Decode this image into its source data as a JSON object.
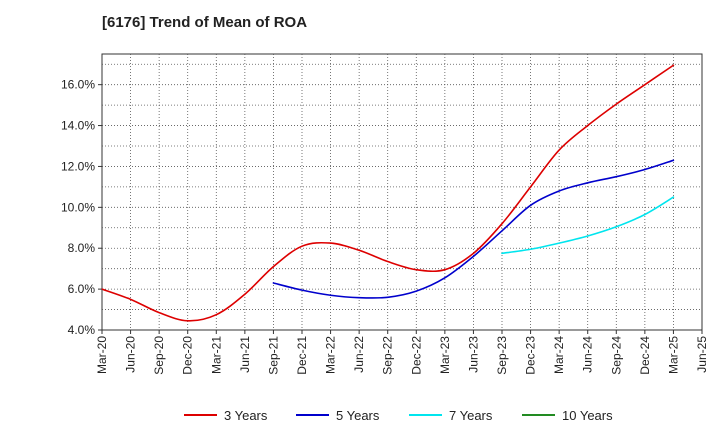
{
  "chart_data": {
    "type": "line",
    "title": "[6176]  Trend of Mean of ROA",
    "xlabel": "",
    "ylabel": "",
    "ylim": [
      4.0,
      17.5
    ],
    "y_ticks": [
      4.0,
      6.0,
      8.0,
      10.0,
      12.0,
      14.0,
      16.0
    ],
    "y_tick_labels": [
      "4.0%",
      "6.0%",
      "8.0%",
      "10.0%",
      "12.0%",
      "14.0%",
      "16.0%"
    ],
    "categories": [
      "Mar-20",
      "Jun-20",
      "Sep-20",
      "Dec-20",
      "Mar-21",
      "Jun-21",
      "Sep-21",
      "Dec-21",
      "Mar-22",
      "Jun-22",
      "Sep-22",
      "Dec-22",
      "Mar-23",
      "Jun-23",
      "Sep-23",
      "Dec-23",
      "Mar-24",
      "Jun-24",
      "Sep-24",
      "Dec-24",
      "Mar-25",
      "Jun-25"
    ],
    "grid": true,
    "legend_position": "bottom",
    "series": [
      {
        "name": "3 Years",
        "color": "#dd0000",
        "values": [
          6.0,
          5.5,
          4.85,
          4.45,
          4.75,
          5.75,
          7.1,
          8.1,
          8.25,
          7.9,
          7.35,
          6.95,
          6.95,
          7.75,
          9.2,
          11.0,
          12.8,
          14.0,
          15.05,
          16.0,
          16.95,
          null
        ]
      },
      {
        "name": "5 Years",
        "color": "#0000cc",
        "values": [
          null,
          null,
          null,
          null,
          null,
          null,
          6.3,
          5.95,
          5.7,
          5.58,
          5.6,
          5.9,
          6.55,
          7.6,
          8.85,
          10.1,
          10.8,
          11.2,
          11.5,
          11.85,
          12.3,
          null
        ]
      },
      {
        "name": "7 Years",
        "color": "#00e5ee",
        "values": [
          null,
          null,
          null,
          null,
          null,
          null,
          null,
          null,
          null,
          null,
          null,
          null,
          null,
          null,
          7.75,
          7.95,
          8.25,
          8.6,
          9.05,
          9.65,
          10.5,
          null
        ]
      },
      {
        "name": "10 Years",
        "color": "#228b22",
        "values": [
          null,
          null,
          null,
          null,
          null,
          null,
          null,
          null,
          null,
          null,
          null,
          null,
          null,
          null,
          null,
          null,
          null,
          null,
          null,
          null,
          null,
          null
        ]
      }
    ]
  }
}
